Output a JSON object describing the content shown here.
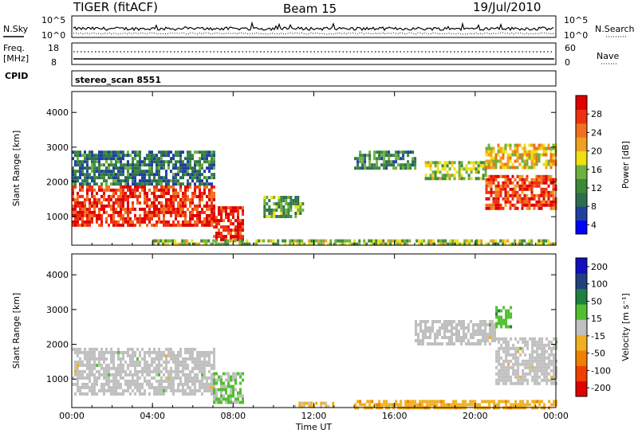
{
  "header": {
    "station": "TIGER (fitACF)",
    "beam": "Beam 15",
    "date": "19/Jul/2010"
  },
  "strips": {
    "nsky_label": "N.Sky",
    "nsky_ticks": [
      "10^5",
      "10^0"
    ],
    "nsearch_label": "N.Search",
    "nsearch_ticks": [
      "10^5",
      "10^0"
    ],
    "freq_label_1": "Freq.",
    "freq_label_2": "[MHz]",
    "freq_ticks": [
      "18",
      "8"
    ],
    "nave_label": "Nave",
    "nave_ticks": [
      "60",
      "0"
    ],
    "cpid_label": "CPID",
    "cpid_value": "stereo_scan 8551"
  },
  "colors": {
    "power": [
      "#0000ff",
      "#2040a0",
      "#2e6e50",
      "#3a8a3a",
      "#70b040",
      "#f0e010",
      "#f0a020",
      "#f07020",
      "#f03010",
      "#e00000"
    ],
    "velocity": [
      "#e00000",
      "#f04000",
      "#f08000",
      "#f0b020",
      "#c0c0c0",
      "#50c030",
      "#208040",
      "#204080",
      "#1010c0"
    ],
    "ground_scatter": "#c0c0c0"
  },
  "chart_data": [
    {
      "type": "heatmap",
      "panel": "power",
      "xlabel": "Time UT",
      "ylabel": "Slant Range [km]",
      "x_ticks": [
        "00:00",
        "04:00",
        "08:00",
        "12:00",
        "16:00",
        "20:00",
        "00:00"
      ],
      "xlim_hours": [
        0,
        24
      ],
      "ylim": [
        180,
        4600
      ],
      "y_ticks": [
        1000,
        2000,
        3000,
        4000
      ],
      "colorbar_label": "Power [dB]",
      "colorbar_ticks": [
        "28",
        "24",
        "20",
        "16",
        "12",
        "8",
        "4"
      ],
      "colorbar_range": [
        0,
        30
      ],
      "regions": [
        {
          "t0": 0.0,
          "t1": 7.0,
          "r_low": 750,
          "r_high": 1900,
          "level": 26
        },
        {
          "t0": 0.0,
          "t1": 7.0,
          "r_low": 1900,
          "r_high": 2900,
          "level": 8
        },
        {
          "t0": 7.0,
          "t1": 8.5,
          "r_low": 300,
          "r_high": 1300,
          "level": 27
        },
        {
          "t0": 9.5,
          "t1": 11.5,
          "r_low": 1000,
          "r_high": 1600,
          "level": 12
        },
        {
          "t0": 14.0,
          "t1": 17.0,
          "r_low": 2400,
          "r_high": 2900,
          "level": 10
        },
        {
          "t0": 17.5,
          "t1": 20.5,
          "r_low": 2100,
          "r_high": 2600,
          "level": 14
        },
        {
          "t0": 20.5,
          "t1": 24.0,
          "r_low": 1200,
          "r_high": 2200,
          "level": 25
        },
        {
          "t0": 20.5,
          "t1": 24.0,
          "r_low": 2400,
          "r_high": 3100,
          "level": 18
        },
        {
          "t0": 4.0,
          "t1": 24.0,
          "r_low": 180,
          "r_high": 350,
          "level": 14
        }
      ]
    },
    {
      "type": "heatmap",
      "panel": "velocity",
      "xlabel": "Time UT",
      "ylabel": "Slant Range [km]",
      "x_ticks": [
        "00:00",
        "04:00",
        "08:00",
        "12:00",
        "16:00",
        "20:00",
        "00:00"
      ],
      "xlim_hours": [
        0,
        24
      ],
      "ylim": [
        180,
        4600
      ],
      "y_ticks": [
        1000,
        2000,
        3000,
        4000
      ],
      "colorbar_label": "Velocity [m s⁻¹]",
      "colorbar_ticks": [
        "200",
        "100",
        "50",
        "15",
        "-15",
        "-50",
        "-100",
        "-200"
      ],
      "colorbar_range": [
        -250,
        250
      ],
      "regions": [
        {
          "t0": 0.0,
          "t1": 7.0,
          "r_low": 600,
          "r_high": 1900,
          "velocity": 0
        },
        {
          "t0": 7.0,
          "t1": 8.5,
          "r_low": 300,
          "r_high": 1200,
          "velocity": 30
        },
        {
          "t0": 11.0,
          "t1": 13.0,
          "r_low": 180,
          "r_high": 350,
          "velocity": -40
        },
        {
          "t0": 14.0,
          "t1": 24.0,
          "r_low": 180,
          "r_high": 400,
          "velocity": -60
        },
        {
          "t0": 17.0,
          "t1": 21.0,
          "r_low": 2000,
          "r_high": 2700,
          "velocity": 0
        },
        {
          "t0": 21.0,
          "t1": 24.0,
          "r_low": 900,
          "r_high": 2200,
          "velocity": 0
        },
        {
          "t0": 21.0,
          "t1": 21.8,
          "r_low": 2500,
          "r_high": 3100,
          "velocity": 60
        }
      ]
    }
  ]
}
